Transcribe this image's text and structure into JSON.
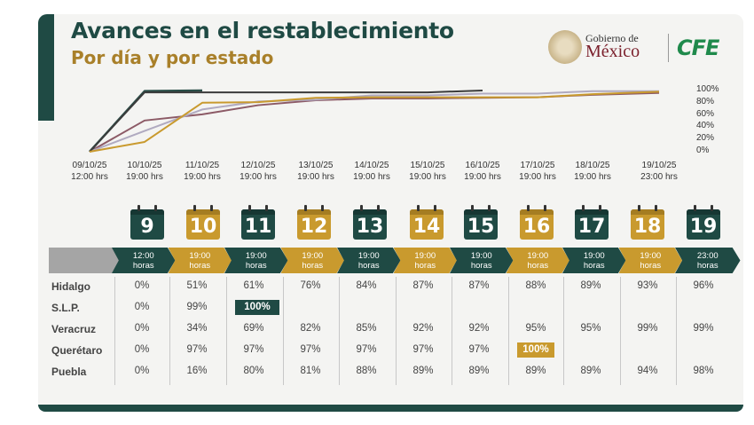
{
  "header": {
    "title": "Avances en el restablecimiento",
    "subtitle": "Por día y por estado"
  },
  "logos": {
    "gobierno_line1": "Gobierno de",
    "gobierno_line2": "México",
    "cfe": "CFE"
  },
  "colors": {
    "dark_green": "#1f4a44",
    "gold": "#c99a2e",
    "arrow_gray": "#a5a5a5"
  },
  "chart_data": {
    "type": "line",
    "x": [
      "09/10/25 12:00 hrs",
      "10/10/25 19:00 hrs",
      "11/10/25 19:00 hrs",
      "12/10/25 19:00 hrs",
      "13/10/25 19:00 hrs",
      "14/10/25 19:00 hrs",
      "15/10/25 19:00 hrs",
      "16/10/25 19:00 hrs",
      "17/10/25 19:00 hrs",
      "18/10/25 19:00 hrs",
      "19/10/25 23:00 hrs"
    ],
    "x_labels": [
      {
        "date": "09/10/25",
        "time": "12:00 hrs"
      },
      {
        "date": "10/10/25",
        "time": "19:00 hrs"
      },
      {
        "date": "11/10/25",
        "time": "19:00 hrs"
      },
      {
        "date": "12/10/25",
        "time": "19:00 hrs"
      },
      {
        "date": "13/10/25",
        "time": "19:00 hrs"
      },
      {
        "date": "14/10/25",
        "time": "19:00 hrs"
      },
      {
        "date": "15/10/25",
        "time": "19:00 hrs"
      },
      {
        "date": "16/10/25",
        "time": "19:00 hrs"
      },
      {
        "date": "17/10/25",
        "time": "19:00 hrs"
      },
      {
        "date": "18/10/25",
        "time": "19:00 hrs"
      },
      {
        "date": "19/10/25",
        "time": "23:00 hrs"
      }
    ],
    "y_ticks": [
      "100%",
      "80%",
      "60%",
      "40%",
      "20%",
      "0%"
    ],
    "ylim": [
      0,
      100
    ],
    "series": [
      {
        "name": "Hidalgo",
        "color": "#8c5a66",
        "values": [
          0,
          51,
          61,
          76,
          84,
          87,
          87,
          88,
          89,
          93,
          96
        ]
      },
      {
        "name": "S.L.P.",
        "color": "#2a4e48",
        "values": [
          0,
          99,
          100,
          null,
          null,
          null,
          null,
          null,
          null,
          null,
          null
        ]
      },
      {
        "name": "Veracruz",
        "color": "#b0aac0",
        "values": [
          0,
          34,
          69,
          82,
          85,
          92,
          92,
          95,
          95,
          99,
          99
        ]
      },
      {
        "name": "Querétaro",
        "color": "#3b3b3b",
        "values": [
          0,
          97,
          97,
          97,
          97,
          97,
          97,
          100,
          null,
          null,
          null
        ]
      },
      {
        "name": "Puebla",
        "color": "#c99a2e",
        "values": [
          0,
          16,
          80,
          81,
          88,
          89,
          89,
          89,
          89,
          94,
          98
        ]
      }
    ]
  },
  "calendar": {
    "days": [
      "9",
      "10",
      "11",
      "12",
      "13",
      "14",
      "15",
      "16",
      "17",
      "18",
      "19"
    ],
    "styles": [
      "green",
      "gold",
      "green",
      "gold",
      "green",
      "gold",
      "green",
      "gold",
      "green",
      "gold",
      "green"
    ]
  },
  "time_arrows": [
    {
      "top": "12:00",
      "bottom": "horas"
    },
    {
      "top": "19:00",
      "bottom": "horas"
    },
    {
      "top": "19:00",
      "bottom": "horas"
    },
    {
      "top": "19:00",
      "bottom": "horas"
    },
    {
      "top": "19:00",
      "bottom": "horas"
    },
    {
      "top": "19:00",
      "bottom": "horas"
    },
    {
      "top": "19:00",
      "bottom": "horas"
    },
    {
      "top": "19:00",
      "bottom": "horas"
    },
    {
      "top": "19:00",
      "bottom": "horas"
    },
    {
      "top": "19:00",
      "bottom": "horas"
    },
    {
      "top": "23:00",
      "bottom": "horas"
    }
  ],
  "table": {
    "rows": [
      {
        "state": "Hidalgo",
        "values": [
          "0%",
          "51%",
          "61%",
          "76%",
          "84%",
          "87%",
          "87%",
          "88%",
          "89%",
          "93%",
          "96%"
        ]
      },
      {
        "state": "S.L.P.",
        "values": [
          "0%",
          "99%",
          "100%",
          "",
          "",
          "",
          "",
          "",
          "",
          "",
          ""
        ]
      },
      {
        "state": "Veracruz",
        "values": [
          "0%",
          "34%",
          "69%",
          "82%",
          "85%",
          "92%",
          "92%",
          "95%",
          "95%",
          "99%",
          "99%"
        ]
      },
      {
        "state": "Querétaro",
        "values": [
          "0%",
          "97%",
          "97%",
          "97%",
          "97%",
          "97%",
          "97%",
          "100%",
          "",
          "",
          ""
        ]
      },
      {
        "state": "Puebla",
        "values": [
          "0%",
          "16%",
          "80%",
          "81%",
          "88%",
          "89%",
          "89%",
          "89%",
          "89%",
          "94%",
          "98%"
        ]
      }
    ],
    "highlights": [
      {
        "row": 1,
        "col": 2,
        "style": "green"
      },
      {
        "row": 3,
        "col": 7,
        "style": "gold"
      }
    ]
  }
}
